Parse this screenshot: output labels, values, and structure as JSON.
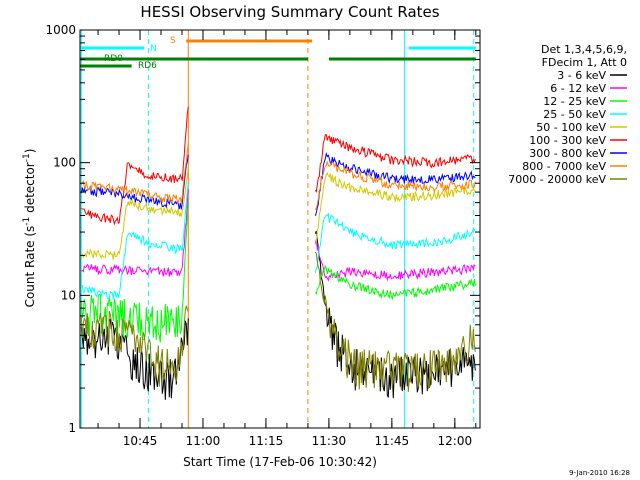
{
  "chart_data": {
    "type": "line",
    "title": "HESSI Observing Summary Count Rates",
    "xlabel": "Start Time (17-Feb-06 10:30:42)",
    "ylabel_main": "Count Rate (s",
    "ylabel_sup1": "-1",
    "ylabel_mid": " detector",
    "ylabel_sup2": "-1",
    "ylabel_end": ")",
    "yscale": "log",
    "ylim": [
      1,
      1000
    ],
    "xlim": [
      "10:30:42",
      "12:06:00"
    ],
    "x_ticks": [
      "10:45",
      "11:00",
      "11:15",
      "11:30",
      "11:45",
      "12:00"
    ],
    "y_ticks": [
      "1",
      "10",
      "100",
      "1000"
    ],
    "timestamp": "9-Jan-2010 16:28",
    "legend": {
      "header1": "Det 1,3,4,5,6,9,",
      "header2": "FDecim 1, Att 0",
      "entries": [
        {
          "label": "3 - 6 keV",
          "color": "#000000"
        },
        {
          "label": "6 - 12 keV",
          "color": "#ff00ff"
        },
        {
          "label": "12 - 25 keV",
          "color": "#00ff00"
        },
        {
          "label": "25 - 50 keV",
          "color": "#00ffff"
        },
        {
          "label": "50 - 100 keV",
          "color": "#d4c800"
        },
        {
          "label": "100 - 300 keV",
          "color": "#ff0000"
        },
        {
          "label": "300 - 800 keV",
          "color": "#0000ff"
        },
        {
          "label": "800 - 7000 keV",
          "color": "#ff8000"
        },
        {
          "label": "7000 - 20000 keV",
          "color": "#808000"
        }
      ]
    },
    "flags": [
      {
        "label": "N",
        "color": "#00ffff",
        "segments": [
          [
            "10:30:42",
            "10:46:00"
          ],
          [
            "11:49:00",
            "12:05:00"
          ]
        ]
      },
      {
        "label": "S",
        "color": "#ff8000",
        "segments": [
          [
            "10:56:00",
            "11:26:00"
          ]
        ]
      },
      {
        "label": "RD0",
        "color": "#008000",
        "segments": [
          [
            "10:30:42",
            "11:25:00"
          ],
          [
            "11:30:00",
            "12:05:00"
          ]
        ]
      },
      {
        "label": "RD6",
        "color": "#008000",
        "segments": [
          [
            "10:30:42",
            "10:43:00"
          ]
        ]
      }
    ],
    "vertical_markers": [
      {
        "t": "10:31:00",
        "color": "#00ffff",
        "style": "solid"
      },
      {
        "t": "10:47:00",
        "color": "#00ffff",
        "style": "dashed"
      },
      {
        "t": "10:56:30",
        "color": "#ff8000",
        "style": "solid"
      },
      {
        "t": "11:25:00",
        "color": "#ff8000",
        "style": "dashed"
      },
      {
        "t": "11:48:00",
        "color": "#00ffff",
        "style": "solid"
      },
      {
        "t": "12:04:30",
        "color": "#00ffff",
        "style": "dashed"
      }
    ],
    "series": [
      {
        "name": "3 - 6 keV",
        "color": "#000000",
        "values": [
          {
            "t": "10:31:00",
            "y": 5.5
          },
          {
            "t": "10:35:00",
            "y": 5.0
          },
          {
            "t": "10:40:00",
            "y": 5.0
          },
          {
            "t": "10:42:00",
            "y": 3.5
          },
          {
            "t": "10:45:00",
            "y": 3.0
          },
          {
            "t": "10:50:00",
            "y": 2.5
          },
          {
            "t": "10:54:00",
            "y": 2.5
          },
          {
            "t": "10:56:00",
            "y": 6.0
          },
          {
            "t": "11:27:00",
            "y": 30
          },
          {
            "t": "11:29:00",
            "y": 9.0
          },
          {
            "t": "11:31:00",
            "y": 5.0
          },
          {
            "t": "11:35:00",
            "y": 3.0
          },
          {
            "t": "11:45:00",
            "y": 2.5
          },
          {
            "t": "11:55:00",
            "y": 2.8
          },
          {
            "t": "12:01:00",
            "y": 3.0
          },
          {
            "t": "12:05:00",
            "y": 3.5
          }
        ]
      },
      {
        "name": "6 - 12 keV",
        "color": "#ff00ff",
        "values": [
          {
            "t": "10:31:00",
            "y": 16
          },
          {
            "t": "10:40:00",
            "y": 15.5
          },
          {
            "t": "10:50:00",
            "y": 15
          },
          {
            "t": "10:55:00",
            "y": 15
          },
          {
            "t": "10:56:30",
            "y": 60
          },
          {
            "t": "11:27:00",
            "y": 25
          },
          {
            "t": "11:29:00",
            "y": 14
          },
          {
            "t": "11:35:00",
            "y": 15
          },
          {
            "t": "11:45:00",
            "y": 14
          },
          {
            "t": "11:55:00",
            "y": 15
          },
          {
            "t": "12:05:00",
            "y": 16
          }
        ]
      },
      {
        "name": "12 - 25 keV",
        "color": "#00ff00",
        "values": [
          {
            "t": "10:31:00",
            "y": 7.5
          },
          {
            "t": "10:40:00",
            "y": 7.5
          },
          {
            "t": "10:47:00",
            "y": 6.5
          },
          {
            "t": "10:55:00",
            "y": 7.0
          },
          {
            "t": "10:56:30",
            "y": 50
          },
          {
            "t": "11:27:00",
            "y": 11
          },
          {
            "t": "11:29:00",
            "y": 16
          },
          {
            "t": "11:35:00",
            "y": 12
          },
          {
            "t": "11:45:00",
            "y": 10
          },
          {
            "t": "11:55:00",
            "y": 11
          },
          {
            "t": "12:05:00",
            "y": 12.5
          }
        ]
      },
      {
        "name": "25 - 50 keV",
        "color": "#00ffff",
        "values": [
          {
            "t": "10:31:00",
            "y": 11
          },
          {
            "t": "10:40:00",
            "y": 10
          },
          {
            "t": "10:42:00",
            "y": 30
          },
          {
            "t": "10:47:00",
            "y": 25
          },
          {
            "t": "10:55:00",
            "y": 22
          },
          {
            "t": "10:56:30",
            "y": 70
          },
          {
            "t": "11:27:00",
            "y": 15
          },
          {
            "t": "11:29:00",
            "y": 40
          },
          {
            "t": "11:35:00",
            "y": 30
          },
          {
            "t": "11:45:00",
            "y": 24
          },
          {
            "t": "11:55:00",
            "y": 25
          },
          {
            "t": "12:05:00",
            "y": 30
          }
        ]
      },
      {
        "name": "50 - 100 keV",
        "color": "#d4c800",
        "values": [
          {
            "t": "10:31:00",
            "y": 21
          },
          {
            "t": "10:40:00",
            "y": 20
          },
          {
            "t": "10:42:00",
            "y": 50
          },
          {
            "t": "10:47:00",
            "y": 45
          },
          {
            "t": "10:55:00",
            "y": 42
          },
          {
            "t": "10:56:30",
            "y": 90
          },
          {
            "t": "11:27:00",
            "y": 25
          },
          {
            "t": "11:29:00",
            "y": 80
          },
          {
            "t": "11:35:00",
            "y": 65
          },
          {
            "t": "11:45:00",
            "y": 55
          },
          {
            "t": "11:55:00",
            "y": 57
          },
          {
            "t": "12:05:00",
            "y": 62
          }
        ]
      },
      {
        "name": "100 - 300 keV",
        "color": "#ff0000",
        "values": [
          {
            "t": "10:31:00",
            "y": 42
          },
          {
            "t": "10:40:00",
            "y": 36
          },
          {
            "t": "10:42:00",
            "y": 95
          },
          {
            "t": "10:47:00",
            "y": 80
          },
          {
            "t": "10:55:00",
            "y": 75
          },
          {
            "t": "10:56:30",
            "y": 270
          },
          {
            "t": "11:27:00",
            "y": 60
          },
          {
            "t": "11:29:00",
            "y": 155
          },
          {
            "t": "11:35:00",
            "y": 130
          },
          {
            "t": "11:45:00",
            "y": 105
          },
          {
            "t": "11:55:00",
            "y": 100
          },
          {
            "t": "12:05:00",
            "y": 110
          }
        ]
      },
      {
        "name": "300 - 800 keV",
        "color": "#0000ff",
        "values": [
          {
            "t": "10:31:00",
            "y": 62
          },
          {
            "t": "10:40:00",
            "y": 58
          },
          {
            "t": "10:47:00",
            "y": 52
          },
          {
            "t": "10:55:00",
            "y": 48
          },
          {
            "t": "10:56:30",
            "y": 120
          },
          {
            "t": "11:27:00",
            "y": 40
          },
          {
            "t": "11:29:00",
            "y": 110
          },
          {
            "t": "11:35:00",
            "y": 92
          },
          {
            "t": "11:45:00",
            "y": 76
          },
          {
            "t": "11:55:00",
            "y": 75
          },
          {
            "t": "12:05:00",
            "y": 80
          }
        ]
      },
      {
        "name": "800 - 7000 keV",
        "color": "#ff8000",
        "values": [
          {
            "t": "10:31:00",
            "y": 68
          },
          {
            "t": "10:40:00",
            "y": 63
          },
          {
            "t": "10:47:00",
            "y": 57
          },
          {
            "t": "10:55:00",
            "y": 52
          },
          {
            "t": "10:56:30",
            "y": 140
          },
          {
            "t": "11:27:00",
            "y": 45
          },
          {
            "t": "11:29:00",
            "y": 100
          },
          {
            "t": "11:35:00",
            "y": 83
          },
          {
            "t": "11:45:00",
            "y": 68
          },
          {
            "t": "11:55:00",
            "y": 66
          },
          {
            "t": "12:05:00",
            "y": 70
          }
        ]
      },
      {
        "name": "7000 - 20000 keV",
        "color": "#808000",
        "values": [
          {
            "t": "10:31:00",
            "y": 6.0
          },
          {
            "t": "10:40:00",
            "y": 5.5
          },
          {
            "t": "10:45:00",
            "y": 4.5
          },
          {
            "t": "10:50:00",
            "y": 3.0
          },
          {
            "t": "10:55:00",
            "y": 3.5
          },
          {
            "t": "10:56:00",
            "y": 8.0
          },
          {
            "t": "11:27:00",
            "y": 20
          },
          {
            "t": "11:29:00",
            "y": 8.0
          },
          {
            "t": "11:32:00",
            "y": 4.5
          },
          {
            "t": "11:36:00",
            "y": 3.0
          },
          {
            "t": "11:50:00",
            "y": 2.8
          },
          {
            "t": "12:00:00",
            "y": 3.0
          },
          {
            "t": "12:05:00",
            "y": 5.5
          }
        ]
      }
    ]
  }
}
